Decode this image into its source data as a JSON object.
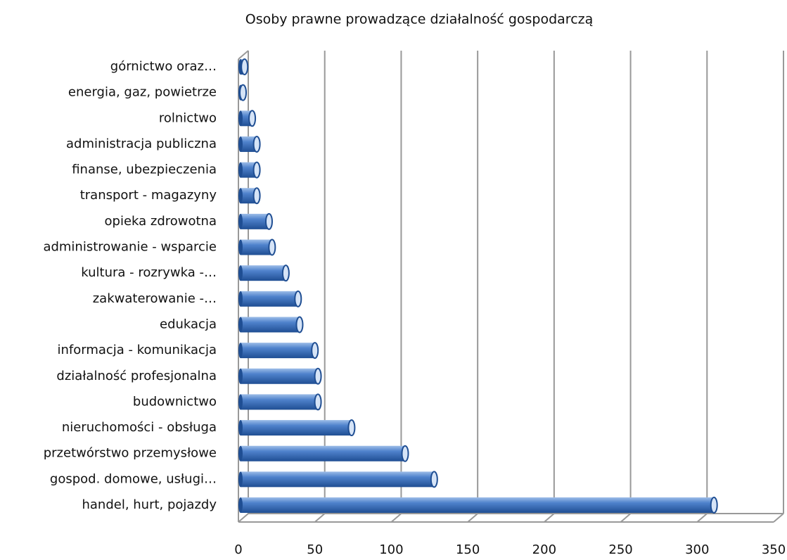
{
  "chart_data": {
    "type": "bar",
    "orientation": "horizontal",
    "title": "Osoby prawne prowadzące działalność gospodarczą",
    "categories": [
      "górnictwo oraz…",
      "energia, gaz, powietrze",
      "rolnictwo",
      "administracja publiczna",
      "finanse, ubezpieczenia",
      "transport - magazyny",
      "opieka zdrowotna",
      "administrowanie - wsparcie",
      "kultura - rozrywka -…",
      "zakwaterowanie -…",
      "edukacja",
      "informacja - komunikacja",
      "działalność profesjonalna",
      "budownictwo",
      "nieruchomości - obsługa",
      "przetwórstwo przemysłowe",
      "gospod. domowe, usługi…",
      "handel, hurt, pojazdy"
    ],
    "values": [
      4,
      3,
      9,
      12,
      12,
      12,
      20,
      22,
      31,
      39,
      40,
      50,
      52,
      52,
      74,
      109,
      128,
      311
    ],
    "color": "#3f74c4",
    "xlim": [
      0,
      350
    ],
    "xticks": [
      0,
      50,
      100,
      150,
      200,
      250,
      300,
      350
    ],
    "grid": true
  }
}
